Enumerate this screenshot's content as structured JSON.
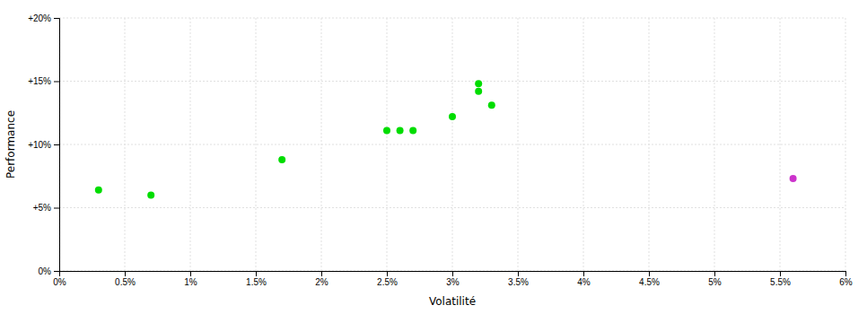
{
  "chart_data": {
    "type": "scatter",
    "xlabel": "Volatilité",
    "ylabel": "Performance",
    "xlim": [
      0,
      0.06
    ],
    "ylim": [
      0,
      0.2
    ],
    "xticks": [
      {
        "value": 0.0,
        "label": "0%"
      },
      {
        "value": 0.005,
        "label": "0.5%"
      },
      {
        "value": 0.01,
        "label": "1%"
      },
      {
        "value": 0.015,
        "label": "1.5%"
      },
      {
        "value": 0.02,
        "label": "2%"
      },
      {
        "value": 0.025,
        "label": "2.5%"
      },
      {
        "value": 0.03,
        "label": "3%"
      },
      {
        "value": 0.035,
        "label": "3.5%"
      },
      {
        "value": 0.04,
        "label": "4%"
      },
      {
        "value": 0.045,
        "label": "4.5%"
      },
      {
        "value": 0.05,
        "label": "5%"
      },
      {
        "value": 0.055,
        "label": "5.5%"
      },
      {
        "value": 0.06,
        "label": "6%"
      }
    ],
    "yticks": [
      {
        "value": 0.0,
        "label": "0%"
      },
      {
        "value": 0.05,
        "label": "+5%"
      },
      {
        "value": 0.1,
        "label": "+10%"
      },
      {
        "value": 0.15,
        "label": "+15%"
      },
      {
        "value": 0.2,
        "label": "+20%"
      }
    ],
    "grid": true,
    "series": [
      {
        "color": "#00dd00",
        "x": [
          0.003,
          0.007,
          0.017,
          0.025,
          0.026,
          0.027,
          0.03,
          0.032,
          0.032,
          0.033
        ],
        "values": [
          0.064,
          0.06,
          0.088,
          0.111,
          0.111,
          0.111,
          0.122,
          0.148,
          0.142,
          0.131
        ]
      },
      {
        "color": "#cc33cc",
        "x": [
          0.056
        ],
        "values": [
          0.073
        ]
      }
    ]
  }
}
